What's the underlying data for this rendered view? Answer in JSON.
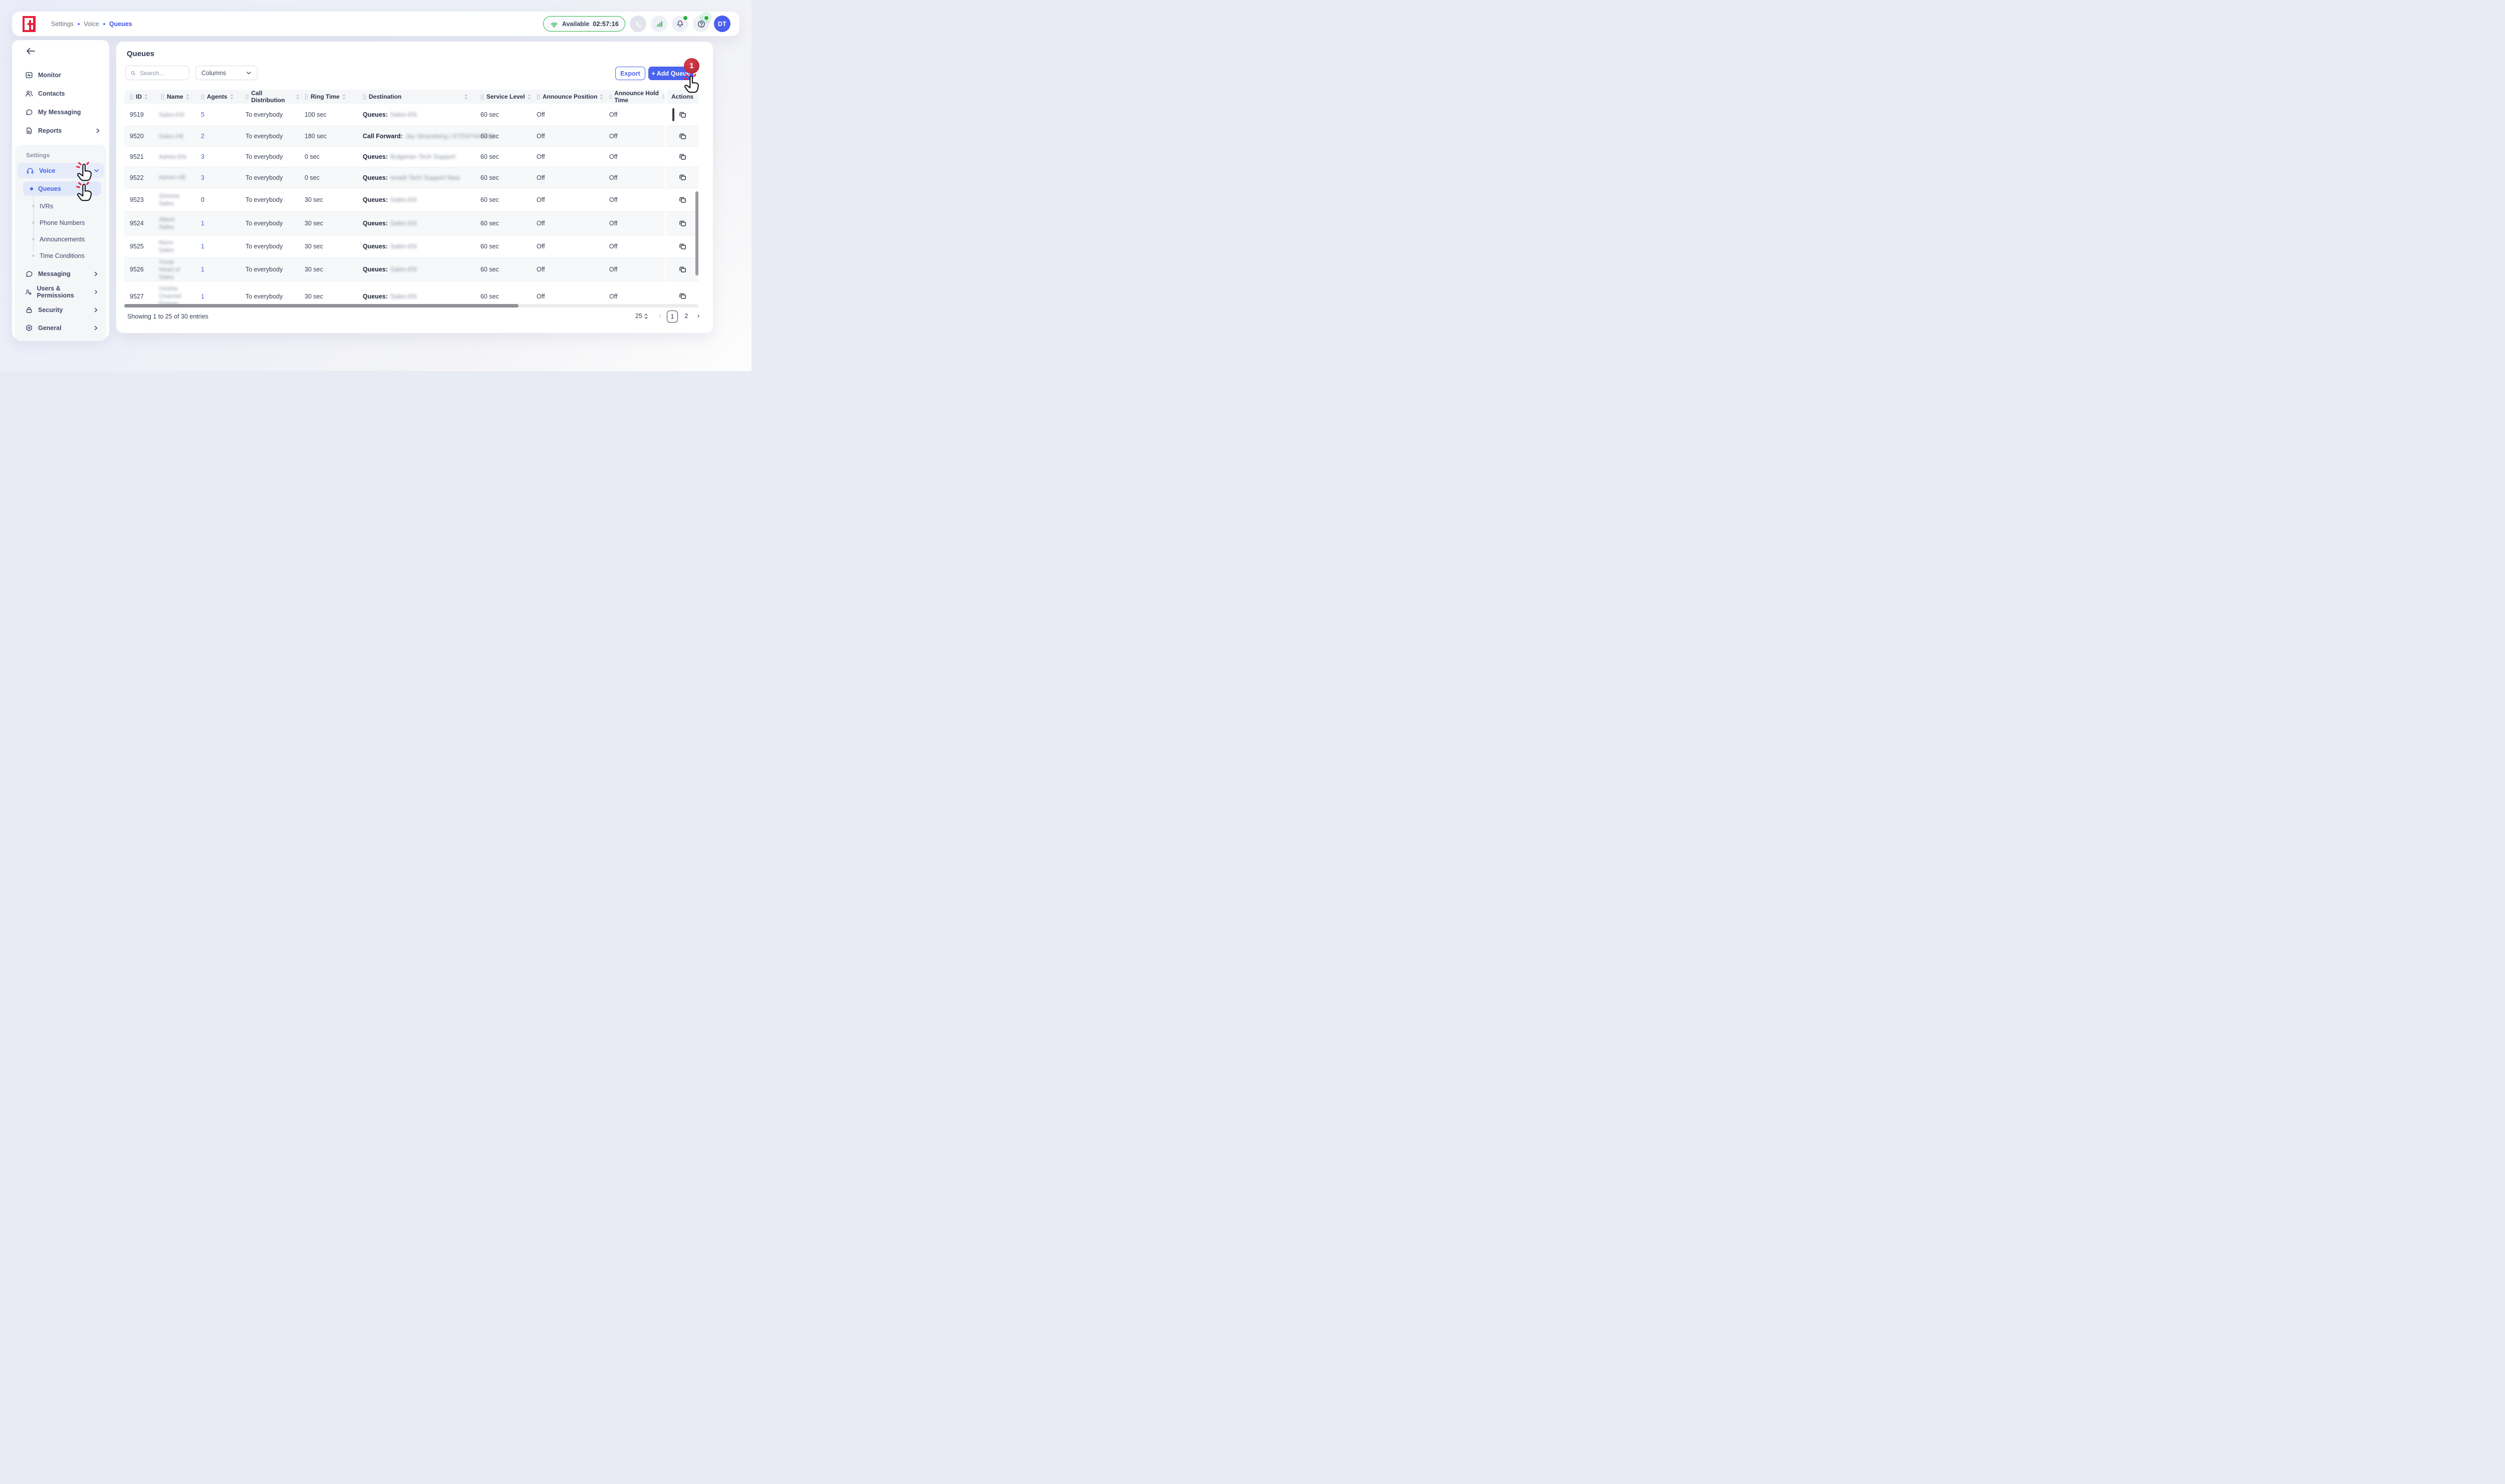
{
  "app": {
    "accent_color": "#4a63f0",
    "brand_color": "#e8203a",
    "success_green": "#27ae3b",
    "badge_red": "#c62f3b"
  },
  "topbar": {
    "breadcrumb": [
      {
        "label": "Settings",
        "active": false
      },
      {
        "label": "Voice",
        "active": false
      },
      {
        "label": "Queues",
        "active": true
      }
    ],
    "status": {
      "label": "Available",
      "timer": "02:57:16"
    },
    "avatar_initials": "DT",
    "icons": {
      "logo": "brand-logo",
      "wifi": "wifi-arcs",
      "phone": "phone-handset",
      "signal": "signal-bars",
      "bell": "notification-bell",
      "help": "question-mark"
    }
  },
  "sidebar": {
    "top_items": [
      {
        "label": "Monitor",
        "icon": "monitor-pulse",
        "expandable": false
      },
      {
        "label": "Contacts",
        "icon": "people",
        "expandable": false
      },
      {
        "label": "My Messaging",
        "icon": "chat-bubble",
        "expandable": false
      },
      {
        "label": "Reports",
        "icon": "report-document",
        "expandable": true
      }
    ],
    "settings_label": "Settings",
    "voice": {
      "label": "Voice",
      "icon": "headset",
      "expanded": true
    },
    "voice_children": [
      {
        "label": "Queues",
        "active": true
      },
      {
        "label": "IVRs",
        "active": false
      },
      {
        "label": "Phone Numbers",
        "active": false
      },
      {
        "label": "Announcements",
        "active": false
      },
      {
        "label": "Time Conditions",
        "active": false
      }
    ],
    "bottom_items": [
      {
        "label": "Messaging",
        "icon": "chat-bubble",
        "expandable": true
      },
      {
        "label": "Users & Permissions",
        "icon": "user-gear",
        "expandable": true
      },
      {
        "label": "Security",
        "icon": "padlock",
        "expandable": true
      },
      {
        "label": "General",
        "icon": "gear-nut",
        "expandable": true
      }
    ]
  },
  "main": {
    "title": "Queues",
    "search_placeholder": "Search...",
    "columns_label": "Columns",
    "export_label": "Export",
    "add_queue_label": "+ Add Queue",
    "add_queue_badge": "1",
    "table": {
      "headers": [
        "ID",
        "Name",
        "Agents",
        "Call Distribution",
        "Ring Time",
        "Destination",
        "Service Level",
        "Announce Position",
        "Announce Hold Time",
        "Actions"
      ],
      "redacted_fields": [
        "name",
        "destination_value"
      ],
      "rows": [
        {
          "id": "9519",
          "name": "Sales-EN",
          "agents": "5",
          "agents_is_link": true,
          "call_distribution": "To everybody",
          "ring_time": "100 sec",
          "destination_label": "Queues:",
          "destination_value": "Sales-EN",
          "service_level": "60 sec",
          "announce_position": "Off",
          "announce_hold_time": "Off"
        },
        {
          "id": "9520",
          "name": "Sales-HE",
          "agents": "2",
          "agents_is_link": true,
          "call_distribution": "To everybody",
          "ring_time": "180 sec",
          "destination_label": "Call Forward:",
          "destination_value": "Jay Strausberg | 972547443586",
          "service_level": "60 sec",
          "announce_position": "Off",
          "announce_hold_time": "Off"
        },
        {
          "id": "9521",
          "name": "Admin-EN",
          "agents": "3",
          "agents_is_link": true,
          "call_distribution": "To everybody",
          "ring_time": "0 sec",
          "destination_label": "Queues:",
          "destination_value": "Bulgarian Tech Support",
          "service_level": "60 sec",
          "announce_position": "Off",
          "announce_hold_time": "Off"
        },
        {
          "id": "9522",
          "name": "Admin-HE",
          "agents": "3",
          "agents_is_link": true,
          "call_distribution": "To everybody",
          "ring_time": "0 sec",
          "destination_label": "Queues:",
          "destination_value": "Israeli Tech Support New",
          "service_level": "60 sec",
          "announce_position": "Off",
          "announce_hold_time": "Off"
        },
        {
          "id": "9523",
          "name": "Simona Sales",
          "agents": "0",
          "agents_is_link": false,
          "call_distribution": "To everybody",
          "ring_time": "30 sec",
          "destination_label": "Queues:",
          "destination_value": "Sales-EN",
          "service_level": "60 sec",
          "announce_position": "Off",
          "announce_hold_time": "Off"
        },
        {
          "id": "9524",
          "name": "Albert Sales",
          "agents": "1",
          "agents_is_link": true,
          "call_distribution": "To everybody",
          "ring_time": "30 sec",
          "destination_label": "Queues:",
          "destination_value": "Sales-EN",
          "service_level": "60 sec",
          "announce_position": "Off",
          "announce_hold_time": "Off"
        },
        {
          "id": "9525",
          "name": "Nuno Sales",
          "agents": "1",
          "agents_is_link": true,
          "call_distribution": "To everybody",
          "ring_time": "30 sec",
          "destination_label": "Queues:",
          "destination_value": "Sales-EN",
          "service_level": "60 sec",
          "announce_position": "Off",
          "announce_hold_time": "Off"
        },
        {
          "id": "9526",
          "name": "Yuval Head of Sales",
          "agents": "1",
          "agents_is_link": true,
          "call_distribution": "To everybody",
          "ring_time": "30 sec",
          "destination_label": "Queues:",
          "destination_value": "Sales-EN",
          "service_level": "60 sec",
          "announce_position": "Off",
          "announce_hold_time": "Off"
        },
        {
          "id": "9527",
          "name": "Unisha Channel Partner",
          "agents": "1",
          "agents_is_link": true,
          "call_distribution": "To everybody",
          "ring_time": "30 sec",
          "destination_label": "Queues:",
          "destination_value": "Sales-EN",
          "service_level": "60 sec",
          "announce_position": "Off",
          "announce_hold_time": "Off"
        }
      ]
    },
    "footer": {
      "showing_text": "Showing 1 to 25 of 30 entries",
      "page_size": "25",
      "pages": [
        "1",
        "2"
      ],
      "current_page": "1"
    }
  }
}
